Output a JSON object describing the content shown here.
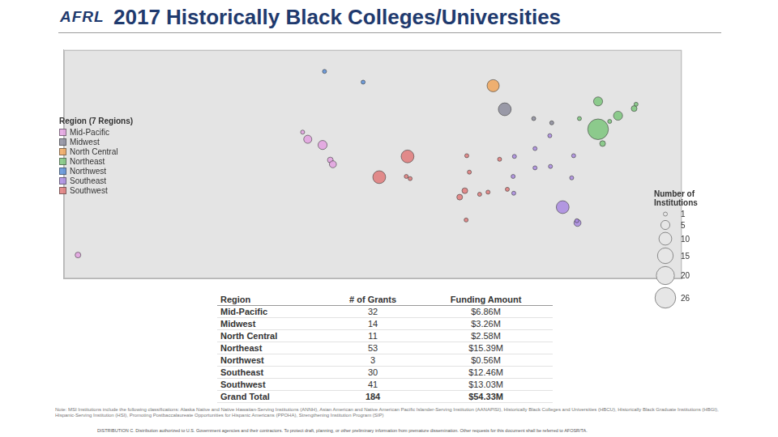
{
  "header": {
    "logo": "AFRL"
  },
  "chart_data": {
    "type": "bubble",
    "title": "2017 Historically Black Colleges/Universities",
    "legend_title": "Region (7 Regions)",
    "legend": "left",
    "grid": false,
    "tick_labels": false,
    "xlim": [
      -160,
      -64
    ],
    "ylim": [
      18,
      50
    ],
    "size_legend": {
      "title": "Number of Institutions",
      "values": [
        1,
        5,
        10,
        15,
        20,
        26
      ]
    },
    "series": [
      {
        "name": "Mid-Pacific",
        "color": "#e3a1e0",
        "x": [
          -157.8,
          -122.9,
          -122.1,
          -119.8,
          -118.6,
          -118.2
        ],
        "y": [
          21.3,
          38.5,
          37.5,
          36.7,
          34.6,
          34.0
        ],
        "size": [
          2,
          1,
          4,
          5,
          2,
          3
        ]
      },
      {
        "name": "Midwest",
        "color": "#8c8c9c",
        "x": [
          -91.5,
          -87.0,
          -84.2
        ],
        "y": [
          41.7,
          40.4,
          39.8
        ],
        "size": [
          10,
          1,
          1
        ]
      },
      {
        "name": "North Central",
        "color": "#f0a65c",
        "x": [
          -93.3
        ],
        "y": [
          45.0
        ],
        "size": [
          9
        ]
      },
      {
        "name": "Northeast",
        "color": "#7cc67c",
        "x": [
          -77.0,
          -73.9,
          -71.1,
          -71.4,
          -77.0,
          -79.9,
          -75.2,
          -76.3
        ],
        "y": [
          42.8,
          40.8,
          42.4,
          41.8,
          38.9,
          40.4,
          40.0,
          36.9
        ],
        "size": [
          5,
          5,
          1,
          2,
          26,
          1,
          1,
          2
        ]
      },
      {
        "name": "Northwest",
        "color": "#5b8fd8",
        "x": [
          -119.5,
          -113.5
        ],
        "y": [
          47.0,
          45.5
        ],
        "size": [
          1,
          1
        ]
      },
      {
        "name": "Southeast",
        "color": "#a98ae0",
        "x": [
          -84.5,
          -90.0,
          -86.8,
          -80.8,
          -86.8,
          -84.4,
          -90.2,
          -81.1,
          -90.1,
          -82.5,
          -80.2,
          -80.3
        ],
        "y": [
          38.0,
          35.1,
          36.2,
          35.2,
          33.5,
          33.7,
          32.3,
          32.1,
          29.95,
          28.0,
          25.8,
          26.1
        ],
        "size": [
          1,
          1,
          1,
          1,
          1,
          1,
          1,
          1,
          1,
          10,
          3,
          1
        ]
      },
      {
        "name": "Southwest",
        "color": "#e07a7a",
        "x": [
          -106.6,
          -106.8,
          -106.2,
          -111.0,
          -97.4,
          -97.0,
          -92.3,
          -97.7,
          -95.4,
          -98.5,
          -94.1,
          -97.5,
          -91.1
        ],
        "y": [
          35.1,
          32.3,
          32.0,
          32.2,
          35.2,
          32.9,
          34.7,
          30.3,
          29.8,
          29.4,
          30.1,
          26.2,
          30.5
        ],
        "size": [
          10,
          1,
          1,
          10,
          1,
          1,
          1,
          2,
          1,
          2,
          1,
          1,
          1
        ]
      }
    ]
  },
  "table": {
    "columns": [
      "Region",
      "# of Grants",
      "Funding Amount"
    ],
    "rows": [
      [
        "Mid-Pacific",
        32,
        "$6.86M"
      ],
      [
        "Midwest",
        14,
        "$3.26M"
      ],
      [
        "North Central",
        11,
        "$2.58M"
      ],
      [
        "Northeast",
        53,
        "$15.39M"
      ],
      [
        "Northwest",
        3,
        "$0.56M"
      ],
      [
        "Southeast",
        30,
        "$12.46M"
      ],
      [
        "Southwest",
        41,
        "$13.03M"
      ]
    ],
    "total": [
      "Grand Total",
      184,
      "$54.33M"
    ]
  },
  "note": "Note: MSI Institutions include the following classifications: Alaska Native and Native Hawaiian-Serving Institutions (ANNH), Asian American and Native American Pacific Islander-Serving Institution (AANAPISI), Historically Black Colleges and Universities (HBCU), Historically Black Graduate Institutions (HBGI), Hispanic-Serving Institution (HSI), Promoting Postbaccalaureate Opportunities for Hispanic Americans (PPOHA), Strengthening Institution Program (SIP)",
  "footer": "DISTRIBUTION C. Distribution authorized to U.S. Government agencies and their contractors. To protect draft, planning, or other preliminary information from premature dissemination. Other requests for this document shall be referred to AFOSR/TA."
}
